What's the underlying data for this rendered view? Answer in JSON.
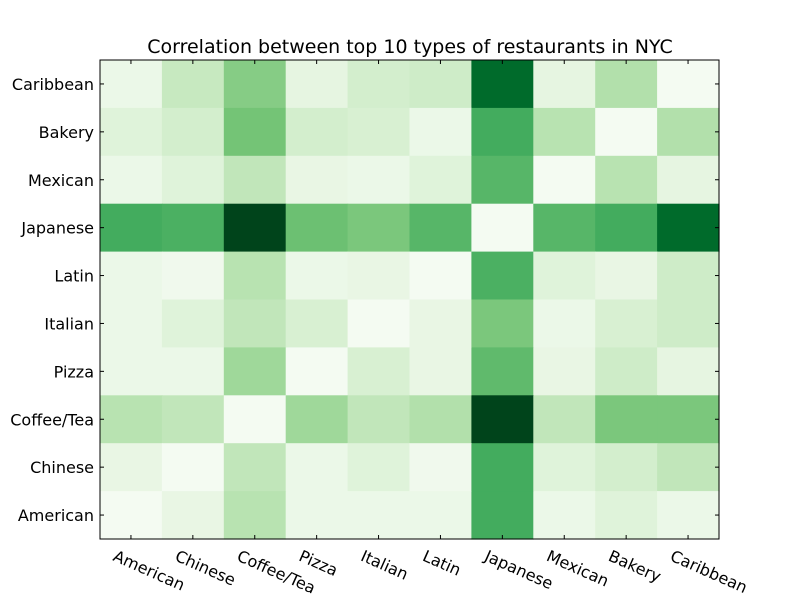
{
  "chart_data": {
    "type": "heatmap",
    "title": "Correlation between top 10 types of restaurants in NYC",
    "xlabel": "",
    "ylabel": "",
    "x_categories": [
      "American",
      "Chinese",
      "Coffee/Tea",
      "Pizza",
      "Italian",
      "Latin",
      "Japanese",
      "Mexican",
      "Bakery",
      "Caribbean"
    ],
    "y_categories_top_to_bottom": [
      "Caribbean",
      "Bakery",
      "Mexican",
      "Japanese",
      "Latin",
      "Italian",
      "Pizza",
      "Coffee/Tea",
      "Chinese",
      "American"
    ],
    "colormap": "Greens",
    "color_range": [
      0,
      1
    ],
    "grid": false,
    "legend": "none",
    "values_top_to_bottom": [
      [
        0.08,
        0.25,
        0.45,
        0.12,
        0.2,
        0.22,
        0.88,
        0.12,
        0.32,
        0.02
      ],
      [
        0.15,
        0.2,
        0.5,
        0.2,
        0.18,
        0.08,
        0.62,
        0.3,
        0.02,
        0.32
      ],
      [
        0.08,
        0.15,
        0.27,
        0.1,
        0.08,
        0.15,
        0.57,
        0.02,
        0.3,
        0.12
      ],
      [
        0.62,
        0.6,
        1.0,
        0.52,
        0.48,
        0.57,
        0.02,
        0.57,
        0.62,
        0.88
      ],
      [
        0.08,
        0.05,
        0.3,
        0.08,
        0.1,
        0.02,
        0.6,
        0.15,
        0.1,
        0.22
      ],
      [
        0.08,
        0.15,
        0.27,
        0.18,
        0.02,
        0.1,
        0.48,
        0.08,
        0.18,
        0.22
      ],
      [
        0.08,
        0.08,
        0.38,
        0.02,
        0.18,
        0.1,
        0.55,
        0.1,
        0.22,
        0.12
      ],
      [
        0.3,
        0.27,
        0.02,
        0.38,
        0.27,
        0.32,
        1.0,
        0.27,
        0.48,
        0.48
      ],
      [
        0.1,
        0.02,
        0.27,
        0.08,
        0.15,
        0.05,
        0.62,
        0.15,
        0.2,
        0.27
      ],
      [
        0.02,
        0.1,
        0.3,
        0.08,
        0.08,
        0.08,
        0.62,
        0.08,
        0.15,
        0.08
      ]
    ]
  }
}
